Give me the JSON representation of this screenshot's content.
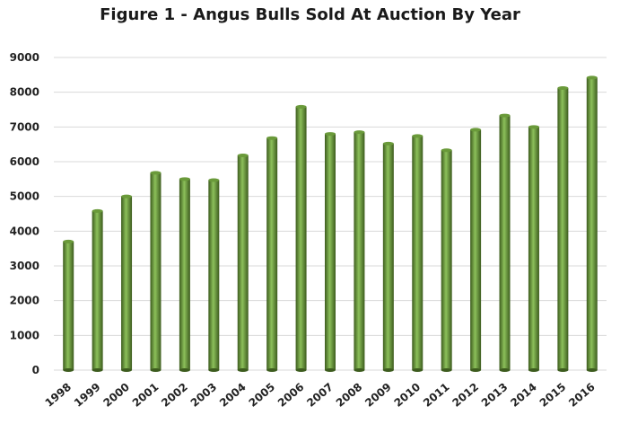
{
  "chart_data": {
    "type": "bar",
    "title": "Figure 1 - Angus Bulls Sold At Auction By Year",
    "xlabel": "",
    "ylabel": "",
    "categories": [
      "1998",
      "1999",
      "2000",
      "2001",
      "2002",
      "2003",
      "2004",
      "2005",
      "2006",
      "2007",
      "2008",
      "2009",
      "2010",
      "2011",
      "2012",
      "2013",
      "2014",
      "2015",
      "2016"
    ],
    "values": [
      3700,
      4580,
      5000,
      5680,
      5500,
      5470,
      6180,
      6680,
      7580,
      6800,
      6850,
      6520,
      6740,
      6330,
      6920,
      7330,
      7000,
      8120,
      8420
    ],
    "ylim": [
      0,
      9000
    ],
    "yticks": [
      "0",
      "1000",
      "2000",
      "3000",
      "4000",
      "5000",
      "6000",
      "7000",
      "8000",
      "9000"
    ],
    "grid": true,
    "legend": "none",
    "colors": {
      "bar_dark": "#3d5c1e",
      "bar_mid": "#6a9a3a",
      "bar_light": "#8cc05a",
      "grid": "#d9d9d9"
    }
  }
}
